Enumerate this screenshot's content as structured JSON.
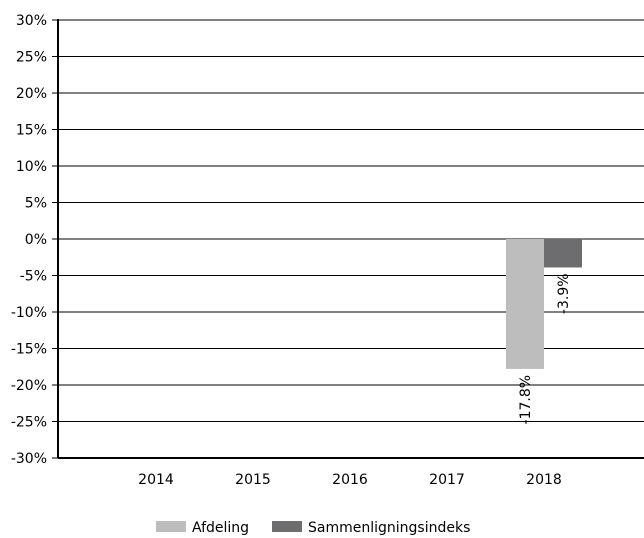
{
  "chart_data": {
    "type": "bar",
    "categories": [
      "2014",
      "2015",
      "2016",
      "2017",
      "2018"
    ],
    "series": [
      {
        "name": "Afdeling",
        "color": "#bdbdbd",
        "values": [
          null,
          null,
          null,
          null,
          -17.8
        ]
      },
      {
        "name": "Sammenligningsindeks",
        "color": "#6d6d6f",
        "values": [
          null,
          null,
          null,
          null,
          -3.9
        ]
      }
    ],
    "data_labels": [
      {
        "series": "Afdeling",
        "category": "2018",
        "value": -17.8,
        "text": "-17.8%"
      },
      {
        "series": "Sammenligningsindeks",
        "category": "2018",
        "value": -3.9,
        "text": "-3.9%"
      }
    ],
    "ylim": [
      -30,
      30
    ],
    "yticks": [
      30,
      25,
      20,
      15,
      10,
      5,
      0,
      -5,
      -10,
      -15,
      -20,
      -25,
      -30
    ],
    "ytick_labels": [
      "30%",
      "25%",
      "20%",
      "15%",
      "10%",
      "5%",
      "0%",
      "-5%",
      "-10%",
      "-15%",
      "-20%",
      "-25%",
      "-30%"
    ],
    "grid": true,
    "legend_position": "bottom-center",
    "title": "",
    "xlabel": "",
    "ylabel": ""
  }
}
